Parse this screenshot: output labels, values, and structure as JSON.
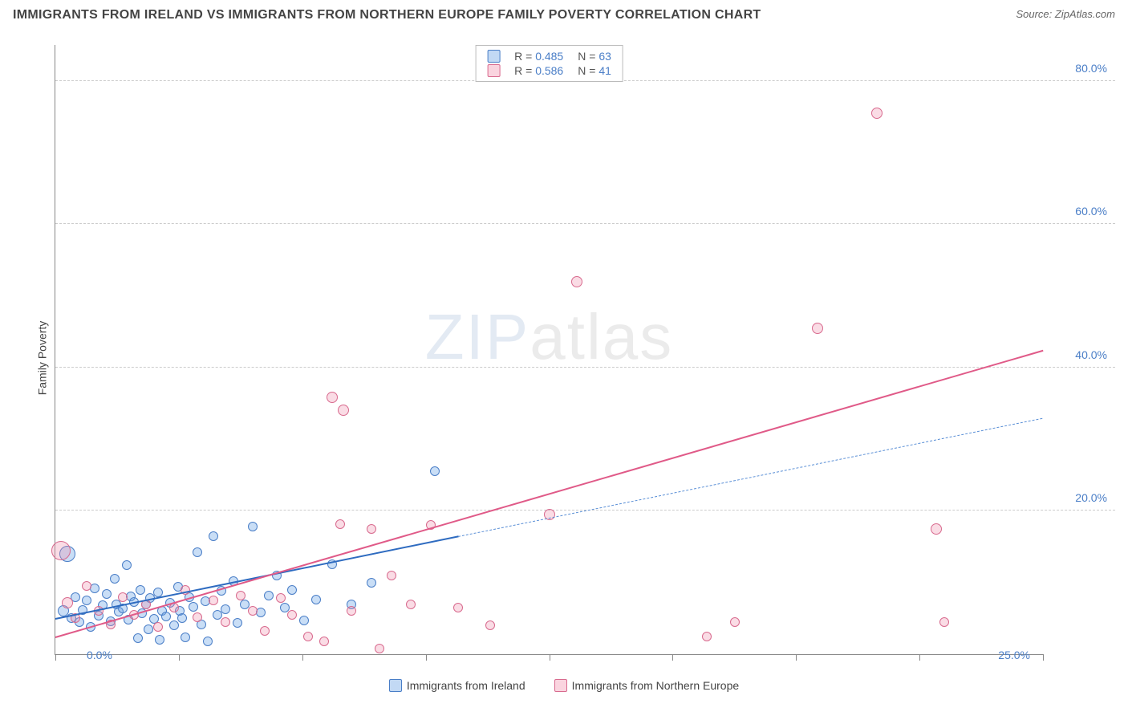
{
  "title": "IMMIGRANTS FROM IRELAND VS IMMIGRANTS FROM NORTHERN EUROPE FAMILY POVERTY CORRELATION CHART",
  "source_prefix": "Source: ",
  "source": "ZipAtlas.com",
  "y_axis_label": "Family Poverty",
  "watermark_bold": "ZIP",
  "watermark_thin": "atlas",
  "chart": {
    "type": "scatter",
    "xlim": [
      0,
      25
    ],
    "ylim": [
      0,
      85
    ],
    "x_ticks_pct": [
      0,
      12.5,
      25,
      37.5,
      50,
      62.5,
      75,
      87.5,
      100
    ],
    "x_labels": [
      "0.0%",
      "25.0%"
    ],
    "y_ticks": [
      20,
      40,
      60,
      80
    ],
    "y_labels": [
      "20.0%",
      "40.0%",
      "60.0%",
      "80.0%"
    ],
    "background_color": "#ffffff",
    "grid_color": "#cccccc",
    "axis_color": "#888888",
    "tick_label_color": "#4a7ec7"
  },
  "series": [
    {
      "name": "Immigrants from Ireland",
      "fill": "rgba(100,160,230,0.35)",
      "stroke": "#4a7ec7",
      "swatch_fill": "rgba(120,170,230,0.45)",
      "swatch_border": "#4a7ec7",
      "r_value": "0.485",
      "n_value": "63",
      "trend": {
        "x1": 0,
        "y1": 5.0,
        "x2": 10.2,
        "y2": 16.5,
        "solid": true,
        "width": 2.5,
        "color": "#2e6bc0"
      },
      "trend_ext": {
        "x1": 10.2,
        "y1": 16.5,
        "x2": 25,
        "y2": 33.0,
        "solid": false,
        "width": 1.2,
        "color": "#5a8fd6"
      },
      "points": [
        {
          "x": 0.2,
          "y": 6,
          "r": 7
        },
        {
          "x": 0.3,
          "y": 14,
          "r": 10
        },
        {
          "x": 0.4,
          "y": 5,
          "r": 6
        },
        {
          "x": 0.5,
          "y": 8,
          "r": 6
        },
        {
          "x": 0.6,
          "y": 4.5,
          "r": 6
        },
        {
          "x": 0.7,
          "y": 6.2,
          "r": 6
        },
        {
          "x": 0.8,
          "y": 7.5,
          "r": 6
        },
        {
          "x": 0.9,
          "y": 3.8,
          "r": 6
        },
        {
          "x": 1.0,
          "y": 9.2,
          "r": 6
        },
        {
          "x": 1.1,
          "y": 5.4,
          "r": 6
        },
        {
          "x": 1.2,
          "y": 6.8,
          "r": 6
        },
        {
          "x": 1.3,
          "y": 8.4,
          "r": 6
        },
        {
          "x": 1.4,
          "y": 4.6,
          "r": 6
        },
        {
          "x": 1.5,
          "y": 10.5,
          "r": 6
        },
        {
          "x": 1.55,
          "y": 7.0,
          "r": 6
        },
        {
          "x": 1.6,
          "y": 5.9,
          "r": 6
        },
        {
          "x": 1.7,
          "y": 6.4,
          "r": 6
        },
        {
          "x": 1.8,
          "y": 12.4,
          "r": 6
        },
        {
          "x": 1.85,
          "y": 4.8,
          "r": 6
        },
        {
          "x": 1.9,
          "y": 8.1,
          "r": 6
        },
        {
          "x": 2.0,
          "y": 7.3,
          "r": 6
        },
        {
          "x": 2.1,
          "y": 2.2,
          "r": 6
        },
        {
          "x": 2.15,
          "y": 9.0,
          "r": 6
        },
        {
          "x": 2.2,
          "y": 5.7,
          "r": 6
        },
        {
          "x": 2.3,
          "y": 6.9,
          "r": 6
        },
        {
          "x": 2.35,
          "y": 3.5,
          "r": 6
        },
        {
          "x": 2.4,
          "y": 7.8,
          "r": 6
        },
        {
          "x": 2.5,
          "y": 4.9,
          "r": 6
        },
        {
          "x": 2.6,
          "y": 8.6,
          "r": 6
        },
        {
          "x": 2.65,
          "y": 2.0,
          "r": 6
        },
        {
          "x": 2.7,
          "y": 6.1,
          "r": 6
        },
        {
          "x": 2.8,
          "y": 5.3,
          "r": 6
        },
        {
          "x": 2.9,
          "y": 7.2,
          "r": 6
        },
        {
          "x": 3.0,
          "y": 4.0,
          "r": 6
        },
        {
          "x": 3.1,
          "y": 9.4,
          "r": 6
        },
        {
          "x": 3.15,
          "y": 6.0,
          "r": 6
        },
        {
          "x": 3.2,
          "y": 5.0,
          "r": 6
        },
        {
          "x": 3.3,
          "y": 2.3,
          "r": 6
        },
        {
          "x": 3.4,
          "y": 8.0,
          "r": 6
        },
        {
          "x": 3.5,
          "y": 6.6,
          "r": 6
        },
        {
          "x": 3.6,
          "y": 14.2,
          "r": 6
        },
        {
          "x": 3.7,
          "y": 4.2,
          "r": 6
        },
        {
          "x": 3.8,
          "y": 7.4,
          "r": 6
        },
        {
          "x": 3.85,
          "y": 1.8,
          "r": 6
        },
        {
          "x": 4.0,
          "y": 16.5,
          "r": 6
        },
        {
          "x": 4.1,
          "y": 5.5,
          "r": 6
        },
        {
          "x": 4.2,
          "y": 8.8,
          "r": 6
        },
        {
          "x": 4.3,
          "y": 6.3,
          "r": 6
        },
        {
          "x": 4.5,
          "y": 10.2,
          "r": 6
        },
        {
          "x": 4.6,
          "y": 4.4,
          "r": 6
        },
        {
          "x": 4.8,
          "y": 7.0,
          "r": 6
        },
        {
          "x": 5.0,
          "y": 17.8,
          "r": 6
        },
        {
          "x": 5.2,
          "y": 5.8,
          "r": 6
        },
        {
          "x": 5.4,
          "y": 8.2,
          "r": 6
        },
        {
          "x": 5.6,
          "y": 11.0,
          "r": 6
        },
        {
          "x": 5.8,
          "y": 6.5,
          "r": 6
        },
        {
          "x": 6.0,
          "y": 9.0,
          "r": 6
        },
        {
          "x": 6.3,
          "y": 4.7,
          "r": 6
        },
        {
          "x": 6.6,
          "y": 7.6,
          "r": 6
        },
        {
          "x": 7.0,
          "y": 12.5,
          "r": 6
        },
        {
          "x": 7.5,
          "y": 7.0,
          "r": 6
        },
        {
          "x": 8.0,
          "y": 10.0,
          "r": 6
        },
        {
          "x": 9.6,
          "y": 25.5,
          "r": 6
        }
      ]
    },
    {
      "name": "Immigrants from Northern Europe",
      "fill": "rgba(240,140,170,0.30)",
      "stroke": "#d86a8e",
      "swatch_fill": "rgba(245,160,185,0.45)",
      "swatch_border": "#d86a8e",
      "r_value": "0.586",
      "n_value": "41",
      "trend": {
        "x1": 0,
        "y1": 2.5,
        "x2": 25,
        "y2": 42.5,
        "solid": true,
        "width": 2.5,
        "color": "#e05a88"
      },
      "points": [
        {
          "x": 0.15,
          "y": 14.5,
          "r": 12
        },
        {
          "x": 0.3,
          "y": 7.2,
          "r": 7
        },
        {
          "x": 0.5,
          "y": 5.0,
          "r": 6
        },
        {
          "x": 0.8,
          "y": 9.5,
          "r": 6
        },
        {
          "x": 1.1,
          "y": 6.0,
          "r": 6
        },
        {
          "x": 1.4,
          "y": 4.2,
          "r": 6
        },
        {
          "x": 1.7,
          "y": 8.0,
          "r": 6
        },
        {
          "x": 2.0,
          "y": 5.5,
          "r": 6
        },
        {
          "x": 2.3,
          "y": 7.0,
          "r": 6
        },
        {
          "x": 2.6,
          "y": 3.8,
          "r": 6
        },
        {
          "x": 3.0,
          "y": 6.5,
          "r": 6
        },
        {
          "x": 3.3,
          "y": 9.0,
          "r": 6
        },
        {
          "x": 3.6,
          "y": 5.2,
          "r": 6
        },
        {
          "x": 4.0,
          "y": 7.5,
          "r": 6
        },
        {
          "x": 4.3,
          "y": 4.5,
          "r": 6
        },
        {
          "x": 4.7,
          "y": 8.2,
          "r": 6
        },
        {
          "x": 5.0,
          "y": 6.0,
          "r": 6
        },
        {
          "x": 5.3,
          "y": 3.2,
          "r": 6
        },
        {
          "x": 5.7,
          "y": 7.8,
          "r": 6
        },
        {
          "x": 6.0,
          "y": 5.5,
          "r": 6
        },
        {
          "x": 6.4,
          "y": 2.5,
          "r": 6
        },
        {
          "x": 6.8,
          "y": 1.8,
          "r": 6
        },
        {
          "x": 7.0,
          "y": 35.8,
          "r": 7
        },
        {
          "x": 7.2,
          "y": 18.2,
          "r": 6
        },
        {
          "x": 7.3,
          "y": 34.0,
          "r": 7
        },
        {
          "x": 7.5,
          "y": 6.0,
          "r": 6
        },
        {
          "x": 8.0,
          "y": 17.5,
          "r": 6
        },
        {
          "x": 8.2,
          "y": 0.8,
          "r": 6
        },
        {
          "x": 8.5,
          "y": 11.0,
          "r": 6
        },
        {
          "x": 9.0,
          "y": 7.0,
          "r": 6
        },
        {
          "x": 9.5,
          "y": 18.0,
          "r": 6
        },
        {
          "x": 10.2,
          "y": 6.5,
          "r": 6
        },
        {
          "x": 11.0,
          "y": 4.0,
          "r": 6
        },
        {
          "x": 12.5,
          "y": 19.5,
          "r": 7
        },
        {
          "x": 13.2,
          "y": 52.0,
          "r": 7
        },
        {
          "x": 16.5,
          "y": 2.5,
          "r": 6
        },
        {
          "x": 17.2,
          "y": 4.5,
          "r": 6
        },
        {
          "x": 19.3,
          "y": 45.5,
          "r": 7
        },
        {
          "x": 20.8,
          "y": 75.5,
          "r": 7
        },
        {
          "x": 22.3,
          "y": 17.5,
          "r": 7
        },
        {
          "x": 22.5,
          "y": 4.5,
          "r": 6
        }
      ]
    }
  ],
  "legend": {
    "items": [
      {
        "label": "Immigrants from Ireland"
      },
      {
        "label": "Immigrants from Northern Europe"
      }
    ]
  }
}
